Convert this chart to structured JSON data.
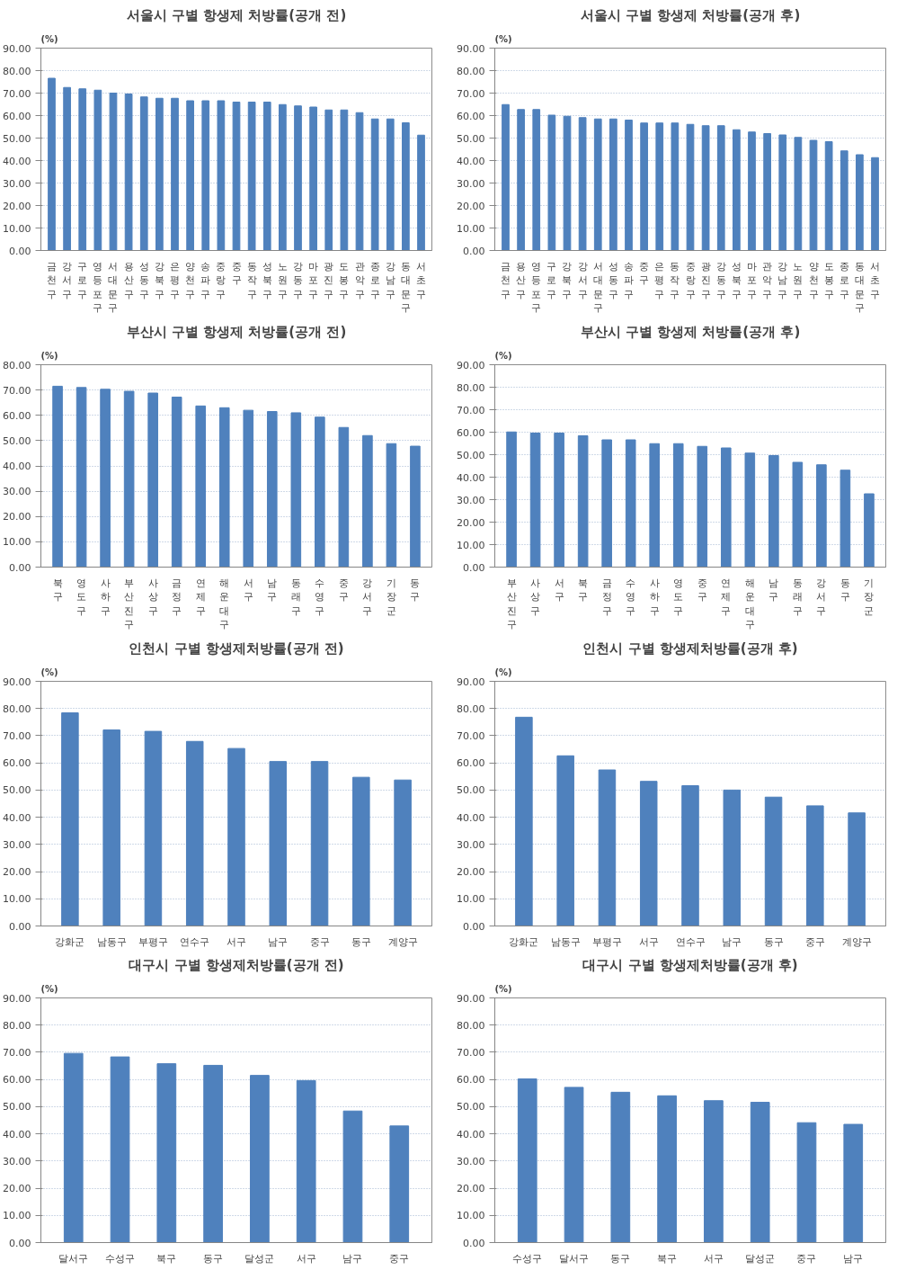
{
  "chart_data": [
    {
      "type": "bar",
      "title": "서울시 구별 항생제 처방률(공개 전)",
      "ylabel": "(%)",
      "color": "#4f81bd",
      "grid": "y",
      "ylim": [
        0,
        90
      ],
      "yticks": [
        {
          "value": 0,
          "label": "0.00"
        },
        {
          "value": 10,
          "label": "10.00"
        },
        {
          "value": 20,
          "label": "20.00"
        },
        {
          "value": 30,
          "label": "30.00"
        },
        {
          "value": 40,
          "label": "40.00"
        },
        {
          "value": 50,
          "label": "50.00"
        },
        {
          "value": 60,
          "label": "60.00"
        },
        {
          "value": 70,
          "label": "70.00"
        },
        {
          "value": 80,
          "label": "80.00"
        },
        {
          "value": 90,
          "label": "90.00"
        }
      ],
      "categories": [
        "금천구",
        "강서구",
        "구로구",
        "영등포구",
        "서대문구",
        "용산구",
        "성동구",
        "강북구",
        "은평구",
        "양천구",
        "송파구",
        "중랑구",
        "중구",
        "동작구",
        "성북구",
        "노원구",
        "강동구",
        "마포구",
        "광진구",
        "도봉구",
        "관악구",
        "종로구",
        "강남구",
        "동대문구",
        "서초구"
      ],
      "values": [
        76.6,
        72.5,
        71.9,
        71.3,
        70.0,
        69.6,
        68.3,
        67.7,
        67.7,
        66.6,
        66.6,
        66.6,
        66.0,
        66.0,
        66.0,
        64.9,
        64.3,
        63.8,
        62.5,
        62.5,
        61.3,
        58.5,
        58.5,
        56.8,
        51.3
      ]
    },
    {
      "type": "bar",
      "title": "서울시 구별 항생제 처방률(공개 후)",
      "ylabel": "(%)",
      "color": "#4f81bd",
      "grid": "y",
      "ylim": [
        0,
        90
      ],
      "yticks": [
        {
          "value": 0,
          "label": "0.00"
        },
        {
          "value": 10,
          "label": "10.00"
        },
        {
          "value": 20,
          "label": "20.00"
        },
        {
          "value": 30,
          "label": "30.00"
        },
        {
          "value": 40,
          "label": "40.00"
        },
        {
          "value": 50,
          "label": "50.00"
        },
        {
          "value": 60,
          "label": "60.00"
        },
        {
          "value": 70,
          "label": "70.00"
        },
        {
          "value": 80,
          "label": "80.00"
        },
        {
          "value": 90,
          "label": "90.00"
        }
      ],
      "categories": [
        "금천구",
        "용산구",
        "영등포구",
        "구로구",
        "강북구",
        "강서구",
        "서대문구",
        "성동구",
        "송파구",
        "중구",
        "은평구",
        "동작구",
        "중랑구",
        "광진구",
        "강동구",
        "성북구",
        "마포구",
        "관악구",
        "강남구",
        "노원구",
        "양천구",
        "도봉구",
        "종로구",
        "동대문구",
        "서초구"
      ],
      "values": [
        64.9,
        62.7,
        62.7,
        60.2,
        59.7,
        59.1,
        58.5,
        58.5,
        58.0,
        56.7,
        56.7,
        56.7,
        56.1,
        55.5,
        55.5,
        53.7,
        52.7,
        52.0,
        51.4,
        50.3,
        49.0,
        48.4,
        44.3,
        42.6,
        41.3
      ]
    },
    {
      "type": "bar",
      "title": "부산시 구별 항생제 처방률(공개 전)",
      "ylabel": "(%)",
      "color": "#4f81bd",
      "grid": "y",
      "ylim": [
        0,
        80
      ],
      "yticks": [
        {
          "value": 0,
          "label": "0.00"
        },
        {
          "value": 10,
          "label": "10.00"
        },
        {
          "value": 20,
          "label": "20.00"
        },
        {
          "value": 30,
          "label": "30.00"
        },
        {
          "value": 40,
          "label": "40.00"
        },
        {
          "value": 50,
          "label": "50.00"
        },
        {
          "value": 60,
          "label": "60.00"
        },
        {
          "value": 70,
          "label": "70.00"
        },
        {
          "value": 80,
          "label": "80.00"
        }
      ],
      "categories": [
        "북구",
        "영도구",
        "사하구",
        "부산진구",
        "사상구",
        "금정구",
        "연제구",
        "해운대구",
        "서구",
        "남구",
        "동래구",
        "수영구",
        "중구",
        "강서구",
        "기장군",
        "동구"
      ],
      "values": [
        71.5,
        71.0,
        70.3,
        69.5,
        68.8,
        67.2,
        63.7,
        63.0,
        62.0,
        61.5,
        61.0,
        59.3,
        55.2,
        52.0,
        48.8,
        47.8
      ]
    },
    {
      "type": "bar",
      "title": "부산시 구별 항생제 처방률(공개 후)",
      "ylabel": "(%)",
      "color": "#4f81bd",
      "grid": "y",
      "ylim": [
        0,
        90
      ],
      "yticks": [
        {
          "value": 0,
          "label": "0.00"
        },
        {
          "value": 10,
          "label": "10.00"
        },
        {
          "value": 20,
          "label": "20.00"
        },
        {
          "value": 30,
          "label": "30.00"
        },
        {
          "value": 40,
          "label": "40.00"
        },
        {
          "value": 50,
          "label": "50.00"
        },
        {
          "value": 60,
          "label": "60.00"
        },
        {
          "value": 70,
          "label": "70.00"
        },
        {
          "value": 80,
          "label": "80.00"
        },
        {
          "value": 90,
          "label": "90.00"
        }
      ],
      "categories": [
        "부산진구",
        "사상구",
        "서구",
        "북구",
        "금정구",
        "수영구",
        "사하구",
        "영도구",
        "중구",
        "연제구",
        "해운대구",
        "남구",
        "동래구",
        "강서구",
        "동구",
        "기장군"
      ],
      "values": [
        60.1,
        59.6,
        59.6,
        58.4,
        56.6,
        56.6,
        54.9,
        54.9,
        53.7,
        53.0,
        50.7,
        49.6,
        46.6,
        45.5,
        43.1,
        32.6
      ]
    },
    {
      "type": "bar",
      "title": "인천시 구별 항생제처방률(공개 전)",
      "ylabel": "(%)",
      "color": "#4f81bd",
      "grid": "y",
      "ylim": [
        0,
        90
      ],
      "yticks": [
        {
          "value": 0,
          "label": "0.00"
        },
        {
          "value": 10,
          "label": "10.00"
        },
        {
          "value": 20,
          "label": "20.00"
        },
        {
          "value": 30,
          "label": "30.00"
        },
        {
          "value": 40,
          "label": "40.00"
        },
        {
          "value": 50,
          "label": "50.00"
        },
        {
          "value": 60,
          "label": "60.00"
        },
        {
          "value": 70,
          "label": "70.00"
        },
        {
          "value": 80,
          "label": "80.00"
        },
        {
          "value": 90,
          "label": "90.00"
        }
      ],
      "categories": [
        "강화군",
        "남동구",
        "부평구",
        "연수구",
        "서구",
        "남구",
        "중구",
        "동구",
        "계양구"
      ],
      "values": [
        78.4,
        72.1,
        71.6,
        67.9,
        65.3,
        60.5,
        60.5,
        54.7,
        53.7
      ]
    },
    {
      "type": "bar",
      "title": "인천시 구별 항생제처방률(공개 후)",
      "ylabel": "(%)",
      "color": "#4f81bd",
      "grid": "y",
      "ylim": [
        0,
        90
      ],
      "yticks": [
        {
          "value": 0,
          "label": "0.00"
        },
        {
          "value": 10,
          "label": "10.00"
        },
        {
          "value": 20,
          "label": "20.00"
        },
        {
          "value": 30,
          "label": "30.00"
        },
        {
          "value": 40,
          "label": "40.00"
        },
        {
          "value": 50,
          "label": "50.00"
        },
        {
          "value": 60,
          "label": "60.00"
        },
        {
          "value": 70,
          "label": "70.00"
        },
        {
          "value": 80,
          "label": "80.00"
        },
        {
          "value": 90,
          "label": "90.00"
        }
      ],
      "categories": [
        "강화군",
        "남동구",
        "부평구",
        "서구",
        "연수구",
        "남구",
        "동구",
        "중구",
        "계양구"
      ],
      "values": [
        76.8,
        62.6,
        57.4,
        53.2,
        51.6,
        50.0,
        47.4,
        44.2,
        41.6
      ]
    },
    {
      "type": "bar",
      "title": "대구시 구별 항생제처방률(공개 전)",
      "ylabel": "(%)",
      "color": "#4f81bd",
      "grid": "y",
      "ylim": [
        0,
        90
      ],
      "yticks": [
        {
          "value": 0,
          "label": "0.00"
        },
        {
          "value": 10,
          "label": "10.00"
        },
        {
          "value": 20,
          "label": "20.00"
        },
        {
          "value": 30,
          "label": "30.00"
        },
        {
          "value": 40,
          "label": "40.00"
        },
        {
          "value": 50,
          "label": "50.00"
        },
        {
          "value": 60,
          "label": "60.00"
        },
        {
          "value": 70,
          "label": "70.00"
        },
        {
          "value": 80,
          "label": "80.00"
        },
        {
          "value": 90,
          "label": "90.00"
        }
      ],
      "categories": [
        "달서구",
        "수성구",
        "북구",
        "동구",
        "달성군",
        "서구",
        "남구",
        "중구"
      ],
      "values": [
        69.6,
        68.3,
        65.8,
        65.2,
        61.5,
        59.6,
        48.4,
        42.9
      ]
    },
    {
      "type": "bar",
      "title": "대구시 구별 항생제처방률(공개 후)",
      "ylabel": "(%)",
      "color": "#4f81bd",
      "grid": "y",
      "ylim": [
        0,
        90
      ],
      "yticks": [
        {
          "value": 0,
          "label": "0.00"
        },
        {
          "value": 10,
          "label": "10.00"
        },
        {
          "value": 20,
          "label": "20.00"
        },
        {
          "value": 30,
          "label": "30.00"
        },
        {
          "value": 40,
          "label": "40.00"
        },
        {
          "value": 50,
          "label": "50.00"
        },
        {
          "value": 60,
          "label": "60.00"
        },
        {
          "value": 70,
          "label": "70.00"
        },
        {
          "value": 80,
          "label": "80.00"
        },
        {
          "value": 90,
          "label": "90.00"
        }
      ],
      "categories": [
        "수성구",
        "달서구",
        "동구",
        "북구",
        "서구",
        "달성군",
        "중구",
        "남구"
      ],
      "values": [
        60.2,
        57.1,
        55.3,
        54.0,
        52.2,
        51.6,
        44.1,
        43.5
      ]
    }
  ]
}
